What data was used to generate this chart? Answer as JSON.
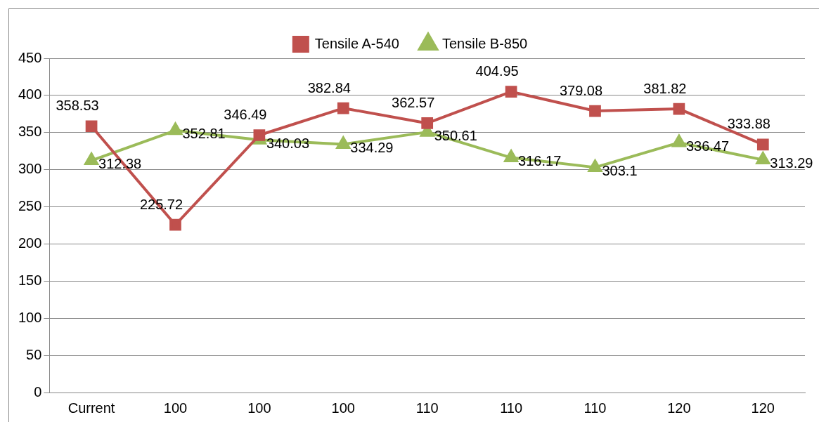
{
  "chart_data": {
    "type": "line",
    "categories": [
      "Current",
      "100",
      "100",
      "100",
      "110",
      "110",
      "110",
      "120",
      "120"
    ],
    "series": [
      {
        "name": "Tensile A-540",
        "color": "#c0504d",
        "marker": "square",
        "values": [
          358.53,
          225.72,
          346.49,
          382.84,
          362.57,
          404.95,
          379.08,
          381.82,
          333.88
        ]
      },
      {
        "name": "Tensile B-850",
        "color": "#9bbb59",
        "marker": "triangle",
        "values": [
          312.38,
          352.81,
          340.03,
          334.29,
          350.61,
          316.17,
          303.1,
          336.47,
          313.29
        ]
      }
    ],
    "ylim": [
      0,
      450
    ],
    "yticks": [
      0,
      50,
      100,
      150,
      200,
      250,
      300,
      350,
      400,
      450
    ],
    "grid": "y",
    "legend": "top",
    "data_labels": true
  }
}
